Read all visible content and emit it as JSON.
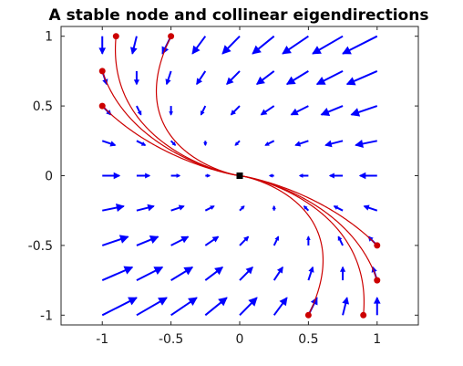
{
  "chart_data": {
    "type": "quiver",
    "title": "A stable node and collinear eigendirections",
    "xlabel": "",
    "ylabel": "",
    "xlim": [
      -1.3,
      1.3
    ],
    "ylim": [
      -1.07,
      1.07
    ],
    "grid": false,
    "legend": "none",
    "x_ticks": [
      {
        "value": -1,
        "label": "-1"
      },
      {
        "value": -0.5,
        "label": "-0.5"
      },
      {
        "value": 0,
        "label": "0"
      },
      {
        "value": 0.5,
        "label": "0.5"
      },
      {
        "value": 1,
        "label": "1"
      }
    ],
    "y_ticks": [
      {
        "value": 1,
        "label": "1"
      },
      {
        "value": 0.5,
        "label": "0.5"
      },
      {
        "value": 0,
        "label": "0"
      },
      {
        "value": -0.5,
        "label": "-0.5"
      },
      {
        "value": -1,
        "label": "-1"
      }
    ],
    "vector_field": {
      "matrix": [
        [
          -1,
          -1
        ],
        [
          0,
          -1
        ]
      ],
      "grid_x": [
        -1,
        -0.75,
        -0.5,
        -0.25,
        0,
        0.25,
        0.5,
        0.75,
        1
      ],
      "grid_y": [
        -1,
        -0.75,
        -0.5,
        -0.25,
        0,
        0.25,
        0.5,
        0.75,
        1
      ],
      "color": "#0000ff"
    },
    "equilibrium": {
      "x": 0,
      "y": 0,
      "color": "#000000"
    },
    "trajectories": {
      "color": "#cc0000",
      "start_points": [
        {
          "x": -0.9,
          "y": 1
        },
        {
          "x": -0.5,
          "y": 1
        },
        {
          "x": -1,
          "y": 0.75
        },
        {
          "x": -1,
          "y": 0.5
        },
        {
          "x": 0.5,
          "y": -1
        },
        {
          "x": 0.9,
          "y": -1
        },
        {
          "x": 1,
          "y": -0.75
        },
        {
          "x": 1,
          "y": -0.5
        }
      ]
    }
  }
}
